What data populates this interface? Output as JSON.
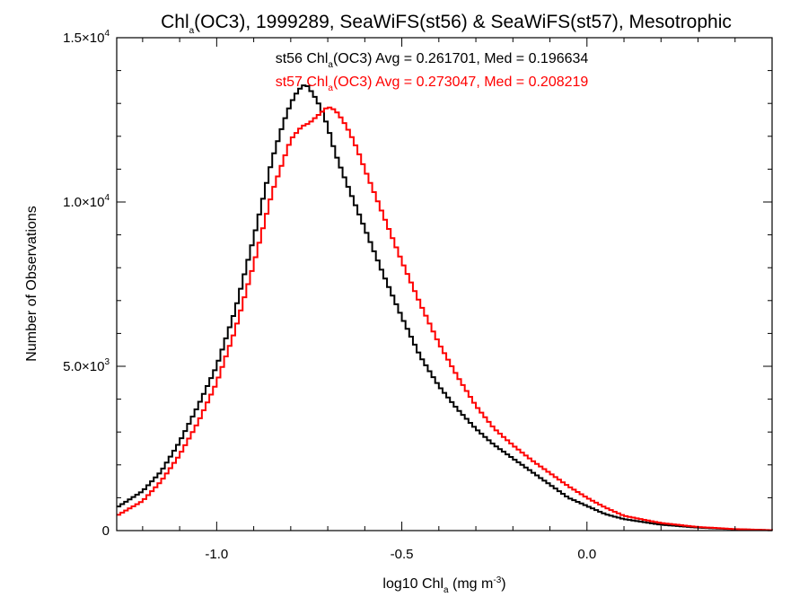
{
  "chart_data": {
    "type": "line",
    "title": {
      "pre": "Chl",
      "sub": "a",
      "post": "(OC3), 1999289, SeaWiFS(st56) & SeaWiFS(st57), Mesotrophic"
    },
    "xlabel": {
      "pre": "log10 Chl",
      "sub": "a",
      "mid": " (mg m",
      "sup": "-3",
      "post": ")"
    },
    "ylabel": "Number of Observations",
    "xlim": [
      -1.27,
      0.5
    ],
    "ylim": [
      0,
      15000
    ],
    "x_ticks": [
      {
        "value": -1.0,
        "label": "-1.0"
      },
      {
        "value": -0.5,
        "label": "-0.5"
      },
      {
        "value": 0.0,
        "label": "0.0"
      }
    ],
    "y_ticks": [
      {
        "value": 0,
        "label": "0",
        "exp": ""
      },
      {
        "value": 5000,
        "label": "5.0×10",
        "exp": "3"
      },
      {
        "value": 10000,
        "label": "1.0×10",
        "exp": "4"
      },
      {
        "value": 15000,
        "label": "1.5×10",
        "exp": "4"
      }
    ],
    "grid": false,
    "legend_position": "top-center",
    "series": [
      {
        "name": "st56",
        "color": "#000000",
        "legend": {
          "pre": "st56 Chl",
          "sub": "a",
          "post": "(OC3) Avg = 0.261701, Med = 0.196634"
        },
        "x": [
          -1.27,
          -1.2,
          -1.15,
          -1.1,
          -1.05,
          -1.0,
          -0.95,
          -0.9,
          -0.85,
          -0.82,
          -0.8,
          -0.78,
          -0.76,
          -0.75,
          -0.74,
          -0.72,
          -0.7,
          -0.68,
          -0.65,
          -0.6,
          -0.55,
          -0.5,
          -0.45,
          -0.4,
          -0.35,
          -0.3,
          -0.25,
          -0.2,
          -0.15,
          -0.1,
          -0.05,
          0.0,
          0.05,
          0.1,
          0.2,
          0.3,
          0.4,
          0.5
        ],
        "y": [
          700,
          1200,
          1800,
          2700,
          3800,
          5000,
          6700,
          8900,
          11300,
          12400,
          13000,
          13400,
          13600,
          13450,
          13300,
          12900,
          12300,
          11500,
          10600,
          9200,
          7800,
          6500,
          5300,
          4400,
          3700,
          3100,
          2600,
          2200,
          1800,
          1400,
          1000,
          750,
          500,
          350,
          180,
          90,
          40,
          10
        ]
      },
      {
        "name": "st57",
        "color": "#ff0000",
        "legend": {
          "pre": "st57 Chl",
          "sub": "a",
          "post": "(OC3) Avg = 0.273047, Med = 0.208219"
        },
        "x": [
          -1.27,
          -1.2,
          -1.15,
          -1.1,
          -1.05,
          -1.0,
          -0.95,
          -0.9,
          -0.85,
          -0.8,
          -0.77,
          -0.75,
          -0.72,
          -0.7,
          -0.68,
          -0.66,
          -0.64,
          -0.62,
          -0.6,
          -0.55,
          -0.5,
          -0.45,
          -0.4,
          -0.35,
          -0.3,
          -0.25,
          -0.2,
          -0.15,
          -0.1,
          -0.05,
          0.0,
          0.05,
          0.1,
          0.2,
          0.3,
          0.4,
          0.5
        ],
        "y": [
          450,
          900,
          1500,
          2300,
          3300,
          4500,
          6100,
          8100,
          10300,
          11900,
          12300,
          12400,
          12700,
          12900,
          12800,
          12500,
          12100,
          11600,
          11000,
          9600,
          8200,
          6900,
          5700,
          4700,
          3800,
          3100,
          2600,
          2150,
          1750,
          1350,
          1000,
          700,
          450,
          230,
          110,
          45,
          12
        ]
      }
    ]
  }
}
